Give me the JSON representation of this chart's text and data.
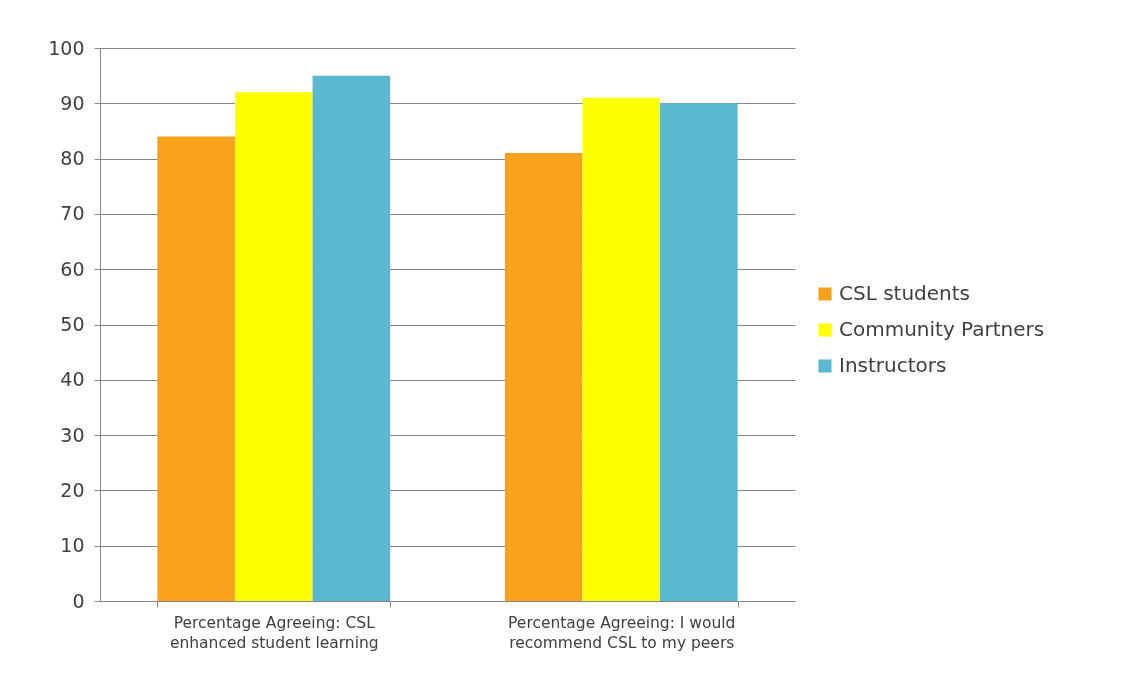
{
  "chart_data": {
    "type": "bar",
    "categories": [
      "Percentage Agreeing: CSL enhanced student learning",
      "Percentage Agreeing: I would recommend CSL to my peers"
    ],
    "series": [
      {
        "name": "CSL students",
        "color": "#f8a11b",
        "values": [
          84,
          81
        ]
      },
      {
        "name": "Community Partners",
        "color": "#ffff00",
        "values": [
          92,
          91
        ]
      },
      {
        "name": "Instructors",
        "color": "#5bb8d1",
        "values": [
          95,
          90
        ]
      }
    ],
    "ylim": [
      0,
      100
    ],
    "yticks": [
      0,
      10,
      20,
      30,
      40,
      50,
      60,
      70,
      80,
      90,
      100
    ],
    "grid": "y",
    "legend": "right"
  }
}
